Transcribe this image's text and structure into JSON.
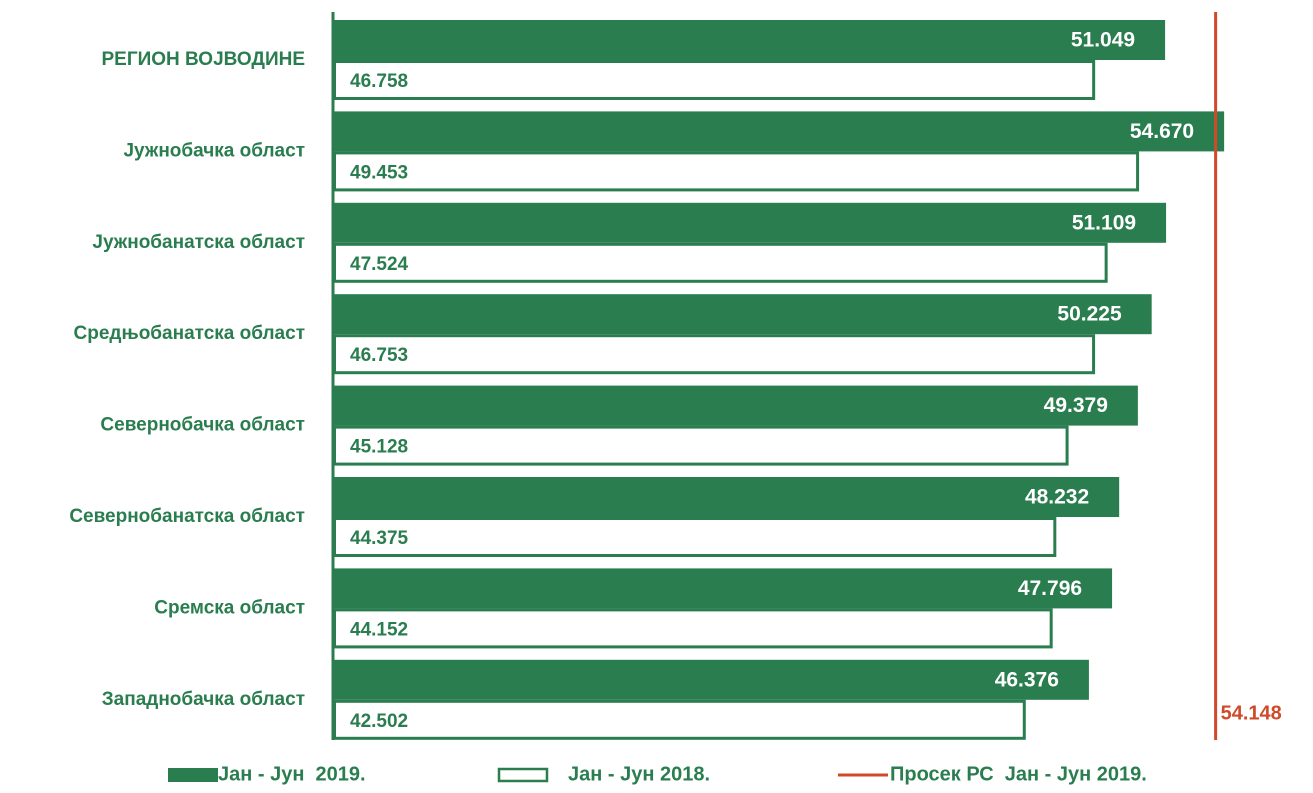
{
  "chart_data": {
    "type": "bar",
    "orientation": "horizontal",
    "categories": [
      "РЕГИОН ВОЈВОДИНЕ",
      "Јужнобачка област",
      "Јужнобанатска област",
      "Средњобанатска област",
      "Севернобачка област",
      "Севернобанатска област",
      "Сремска област",
      "Западнобачка област"
    ],
    "series": [
      {
        "name": "Јан - Јун  2019.",
        "color": "#2a7d4f",
        "style": "filled",
        "values": [
          51049,
          54670,
          51109,
          50225,
          49379,
          48232,
          47796,
          46376
        ],
        "value_labels": [
          "51.049",
          "54.670",
          "51.109",
          "50.225",
          "49.379",
          "48.232",
          "47.796",
          "46.376"
        ]
      },
      {
        "name": "Јан - Јун 2018.",
        "color": "#2a7d4f",
        "style": "outline",
        "values": [
          46758,
          49453,
          47524,
          46753,
          45128,
          44375,
          44152,
          42502
        ],
        "value_labels": [
          "46.758",
          "49.453",
          "47.524",
          "46.753",
          "45.128",
          "44.375",
          "44.152",
          "42.502"
        ]
      }
    ],
    "reference_line": {
      "name": "Просек РС  Јан - Јун 2019.",
      "value": 54148,
      "value_label": "54.148",
      "color": "#d04a2a"
    },
    "xlim": [
      0,
      60000
    ]
  }
}
